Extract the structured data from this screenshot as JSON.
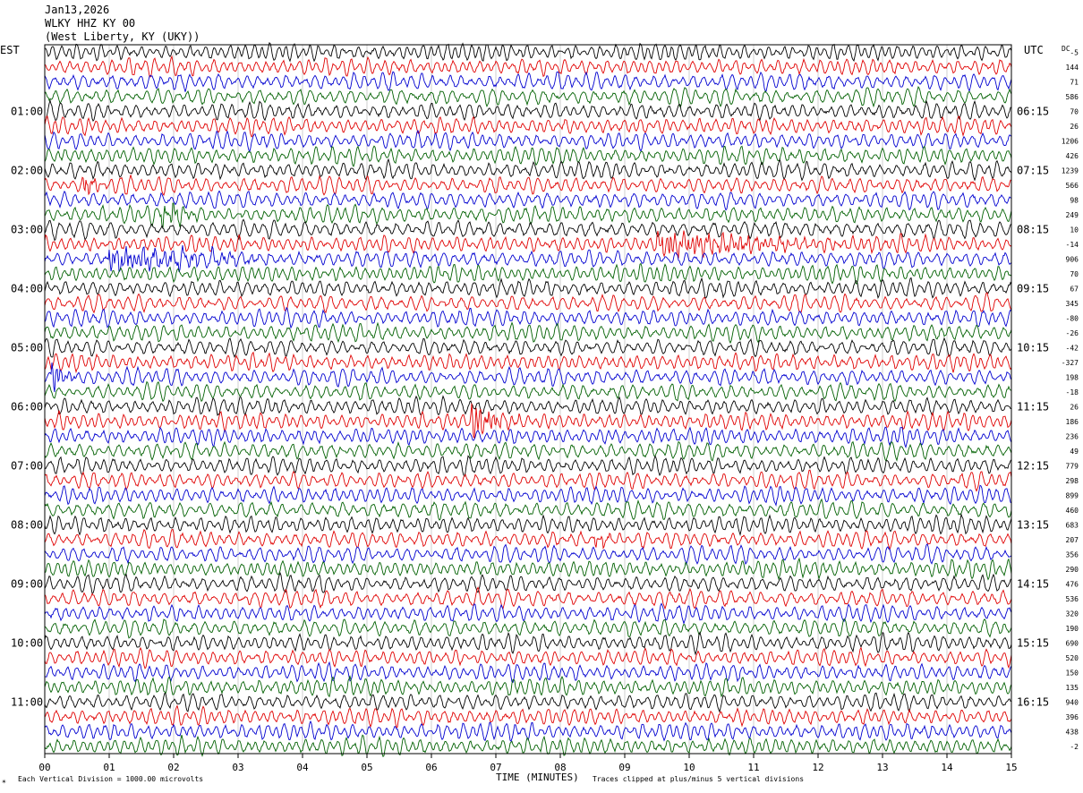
{
  "header": {
    "date": "Jan13,2026",
    "station": "WLKY HHZ KY 00",
    "location": "(West Liberty, KY (UKY))"
  },
  "footer": {
    "mark": "☀",
    "vertical_division": "Each Vertical Division = 1000.00 microvolts",
    "x_axis_label": "TIME (MINUTES)",
    "clip_note": "Traces clipped at plus/minus 5 vertical divisions"
  },
  "colors": {
    "trace_cycle": [
      "#000000",
      "#e00000",
      "#0000d0",
      "#006000"
    ],
    "grid": "#b0b0b0"
  },
  "chart_data": {
    "type": "line",
    "title": "",
    "left_axis_title": "EST",
    "right_axis_title": "UTC",
    "dc_title": "DC",
    "xlabel": "TIME (MINUTES)",
    "xlim": [
      0,
      15
    ],
    "x_ticks": [
      "00",
      "01",
      "02",
      "03",
      "04",
      "05",
      "06",
      "07",
      "08",
      "09",
      "10",
      "11",
      "12",
      "13",
      "14",
      "15"
    ],
    "trace_count": 48,
    "traces_per_hour": 4,
    "minutes_per_trace": 15,
    "left_hour_labels": [
      "01:00",
      "02:00",
      "03:00",
      "04:00",
      "05:00",
      "06:00",
      "07:00",
      "08:00",
      "09:00",
      "10:00",
      "11:00"
    ],
    "right_hour_labels": [
      "06:15",
      "07:15",
      "08:15",
      "09:15",
      "10:15",
      "11:15",
      "12:15",
      "13:15",
      "14:15",
      "15:15",
      "16:15"
    ],
    "hour_label_first_trace": 4,
    "dc_offsets": [
      "-5",
      "144",
      "71",
      "586",
      "70",
      "26",
      "1206",
      "426",
      "1239",
      "566",
      "98",
      "249",
      "10",
      "-14",
      "906",
      "70",
      "67",
      "345",
      "-80",
      "-26",
      "-42",
      "-327",
      "198",
      "-18",
      "26",
      "186",
      "236",
      "49",
      "779",
      "298",
      "899",
      "460",
      "683",
      "207",
      "356",
      "290",
      "476",
      "536",
      "320",
      "190",
      "690",
      "520",
      "150",
      "135",
      "940",
      "396",
      "438",
      "-2"
    ],
    "events": [
      {
        "trace": 9,
        "minute": 0.6,
        "amplitude": 0.8,
        "duration": 0.5
      },
      {
        "trace": 11,
        "minute": 1.8,
        "amplitude": 1.0,
        "duration": 0.9
      },
      {
        "trace": 13,
        "minute": 9.5,
        "amplitude": 0.9,
        "duration": 5.0
      },
      {
        "trace": 14,
        "minute": 1.0,
        "amplitude": 0.9,
        "duration": 4.0
      },
      {
        "trace": 22,
        "minute": 0.1,
        "amplitude": 1.3,
        "duration": 0.5
      },
      {
        "trace": 25,
        "minute": 6.6,
        "amplitude": 1.8,
        "duration": 0.9
      },
      {
        "trace": 33,
        "minute": 8.5,
        "amplitude": 0.6,
        "duration": 0.7
      }
    ]
  }
}
